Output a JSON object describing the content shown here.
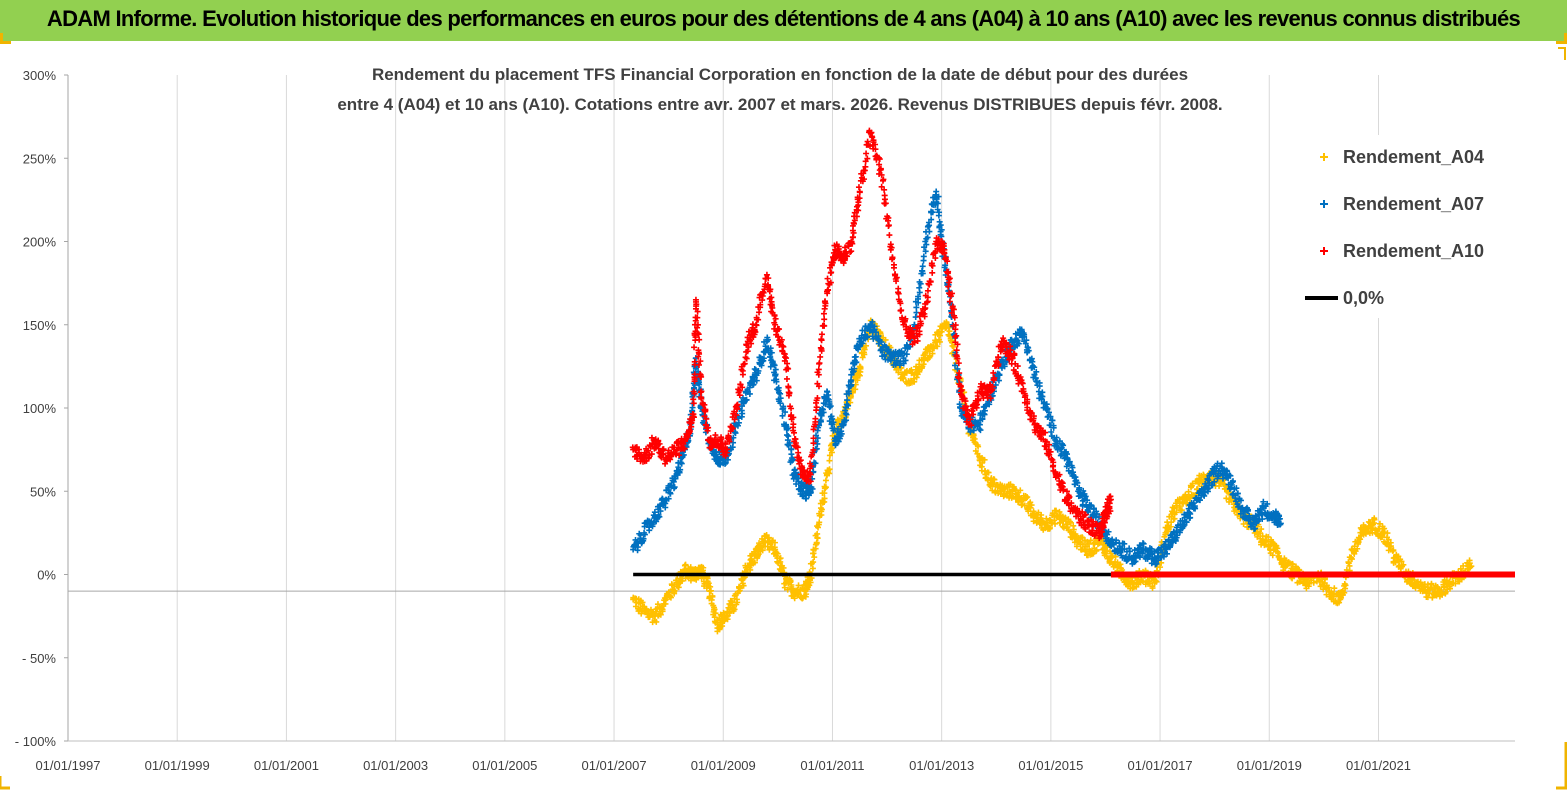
{
  "header": {
    "title": "ADAM Informe. Evolution historique des performances en euros pour des détentions de 4 ans (A04) à 10 ans (A10) avec les revenus connus distribués"
  },
  "chart_data": {
    "type": "scatter",
    "title_line1": "Rendement du placement TFS Financial Corporation en fonction de la date de début pour des durées",
    "title_line2": "entre 4 (A04) et 10 ans (A10). Cotations entre avr. 2007 et mars. 2026. Revenus DISTRIBUES depuis févr. 2008.",
    "ylim": [
      -100,
      300
    ],
    "ytick_values": [
      -100,
      -50,
      0,
      50,
      100,
      150,
      200,
      250,
      300
    ],
    "ytick_labels": [
      "- 100%",
      "- 50%",
      "0%",
      "50%",
      "100%",
      "150%",
      "200%",
      "250%",
      "300%"
    ],
    "xlim": [
      1997.0,
      2023.5
    ],
    "xtick_values": [
      1997,
      1999,
      2001,
      2003,
      2005,
      2007,
      2009,
      2011,
      2013,
      2015,
      2017,
      2019,
      2021
    ],
    "xtick_labels": [
      "01/01/1997",
      "01/01/1999",
      "01/01/2001",
      "01/01/2003",
      "01/01/2005",
      "01/01/2007",
      "01/01/2009",
      "01/01/2011",
      "01/01/2013",
      "01/01/2015",
      "01/01/2017",
      "01/01/2019",
      "01/01/2021"
    ],
    "grid": "vertical",
    "legend_position": "top-right",
    "series": [
      {
        "name": "Rendement_A04",
        "color": "#ffc000",
        "marker": "+",
        "x": [
          2007.35,
          2007.55,
          2007.75,
          2007.95,
          2008.15,
          2008.3,
          2008.45,
          2008.6,
          2008.75,
          2008.9,
          2009.05,
          2009.25,
          2009.45,
          2009.6,
          2009.75,
          2009.95,
          2010.15,
          2010.3,
          2010.5,
          2010.6,
          2010.75,
          2010.9,
          2011.05,
          2011.2,
          2011.35,
          2011.5,
          2011.7,
          2011.9,
          2012.1,
          2012.3,
          2012.5,
          2012.7,
          2012.9,
          2013.1,
          2013.3,
          2013.5,
          2013.7,
          2013.9,
          2014.1,
          2014.3,
          2014.5,
          2014.7,
          2014.9,
          2015.1,
          2015.3,
          2015.5,
          2015.7,
          2015.9,
          2016.1,
          2016.3,
          2016.5,
          2016.7,
          2016.9,
          2017.1,
          2017.3,
          2017.5,
          2017.7,
          2017.9,
          2018.1,
          2018.3,
          2018.5,
          2018.7,
          2018.9,
          2019.1,
          2019.3,
          2019.5,
          2019.7,
          2019.9,
          2020.1,
          2020.3,
          2020.5,
          2020.7,
          2020.9,
          2021.1,
          2021.3,
          2021.5,
          2021.7,
          2021.9,
          2022.1,
          2022.3,
          2022.5,
          2022.7
        ],
        "y": [
          -15,
          -22,
          -25,
          -15,
          -5,
          2,
          0,
          2,
          -10,
          -30,
          -25,
          -15,
          5,
          12,
          20,
          15,
          -5,
          -10,
          -10,
          0,
          30,
          60,
          85,
          95,
          110,
          125,
          150,
          140,
          130,
          118,
          120,
          130,
          140,
          150,
          120,
          90,
          70,
          55,
          50,
          50,
          45,
          35,
          30,
          35,
          30,
          20,
          15,
          20,
          10,
          0,
          -5,
          0,
          -5,
          25,
          40,
          45,
          55,
          60,
          55,
          45,
          35,
          30,
          20,
          15,
          5,
          0,
          -5,
          0,
          -10,
          -15,
          10,
          25,
          30,
          25,
          10,
          0,
          -5,
          -10,
          -10,
          -5,
          0,
          5
        ]
      },
      {
        "name": "Rendement_A07",
        "color": "#0070c0",
        "marker": "+",
        "x": [
          2007.35,
          2007.55,
          2007.75,
          2007.95,
          2008.15,
          2008.3,
          2008.4,
          2008.5,
          2008.6,
          2008.75,
          2008.9,
          2009.05,
          2009.25,
          2009.45,
          2009.6,
          2009.8,
          2009.95,
          2010.15,
          2010.3,
          2010.45,
          2010.6,
          2010.75,
          2010.9,
          2011.05,
          2011.2,
          2011.35,
          2011.5,
          2011.7,
          2011.9,
          2012.1,
          2012.3,
          2012.5,
          2012.7,
          2012.9,
          2013.05,
          2013.2,
          2013.35,
          2013.5,
          2013.7,
          2013.9,
          2014.1,
          2014.3,
          2014.5,
          2014.7,
          2014.9,
          2015.1,
          2015.3,
          2015.5,
          2015.7,
          2015.9,
          2016.1,
          2016.3,
          2016.5,
          2016.7,
          2016.9,
          2017.1,
          2017.3,
          2017.5,
          2017.7,
          2017.9,
          2018.1,
          2018.3,
          2018.5,
          2018.7,
          2018.9,
          2019.1,
          2019.2
        ],
        "y": [
          15,
          25,
          35,
          45,
          60,
          75,
          90,
          130,
          100,
          80,
          70,
          70,
          90,
          110,
          120,
          140,
          120,
          90,
          60,
          50,
          50,
          90,
          110,
          80,
          90,
          120,
          140,
          150,
          135,
          130,
          130,
          150,
          200,
          230,
          190,
          150,
          100,
          90,
          90,
          110,
          125,
          140,
          145,
          120,
          100,
          80,
          70,
          50,
          40,
          30,
          20,
          15,
          10,
          15,
          10,
          15,
          25,
          35,
          45,
          55,
          65,
          55,
          40,
          30,
          40,
          35,
          30
        ]
      },
      {
        "name": "Rendement_A10",
        "color": "#ff0000",
        "marker": "+",
        "x": [
          2007.35,
          2007.55,
          2007.75,
          2007.95,
          2008.15,
          2008.3,
          2008.45,
          2008.5,
          2008.6,
          2008.75,
          2008.9,
          2009.05,
          2009.25,
          2009.45,
          2009.6,
          2009.8,
          2009.95,
          2010.15,
          2010.3,
          2010.45,
          2010.6,
          2010.75,
          2010.9,
          2011.05,
          2011.2,
          2011.35,
          2011.5,
          2011.7,
          2011.9,
          2012.1,
          2012.3,
          2012.5,
          2012.7,
          2012.9,
          2013.05,
          2013.2,
          2013.35,
          2013.5,
          2013.7,
          2013.9,
          2014.1,
          2014.3,
          2014.5,
          2014.7,
          2014.9,
          2015.1,
          2015.3,
          2015.5,
          2015.7,
          2015.9,
          2016.0,
          2016.1
        ],
        "y": [
          75,
          70,
          80,
          70,
          75,
          80,
          95,
          165,
          110,
          80,
          80,
          75,
          100,
          140,
          150,
          180,
          150,
          130,
          80,
          60,
          60,
          120,
          170,
          195,
          190,
          200,
          230,
          265,
          240,
          190,
          150,
          140,
          160,
          200,
          195,
          160,
          110,
          90,
          110,
          110,
          140,
          130,
          110,
          90,
          80,
          60,
          45,
          35,
          30,
          25,
          35,
          45
        ]
      },
      {
        "name": "0,0%",
        "color": "#000000",
        "marker": "line",
        "x": [
          2007.35,
          2016.1
        ],
        "y": [
          0,
          0
        ]
      },
      {
        "name": "Rendement_A10 (0%)",
        "color": "#ff0000",
        "marker": "line",
        "x": [
          2016.1,
          2023.5
        ],
        "y": [
          0,
          0
        ]
      }
    ]
  },
  "legend": [
    {
      "label": "Rendement_A04",
      "color": "#ffc000",
      "symbol": "+"
    },
    {
      "label": "Rendement_A07",
      "color": "#0070c0",
      "symbol": "+"
    },
    {
      "label": "Rendement_A10",
      "color": "#ff0000",
      "symbol": "+"
    },
    {
      "label": "0,0%",
      "color": "#000000",
      "symbol": "line"
    }
  ]
}
